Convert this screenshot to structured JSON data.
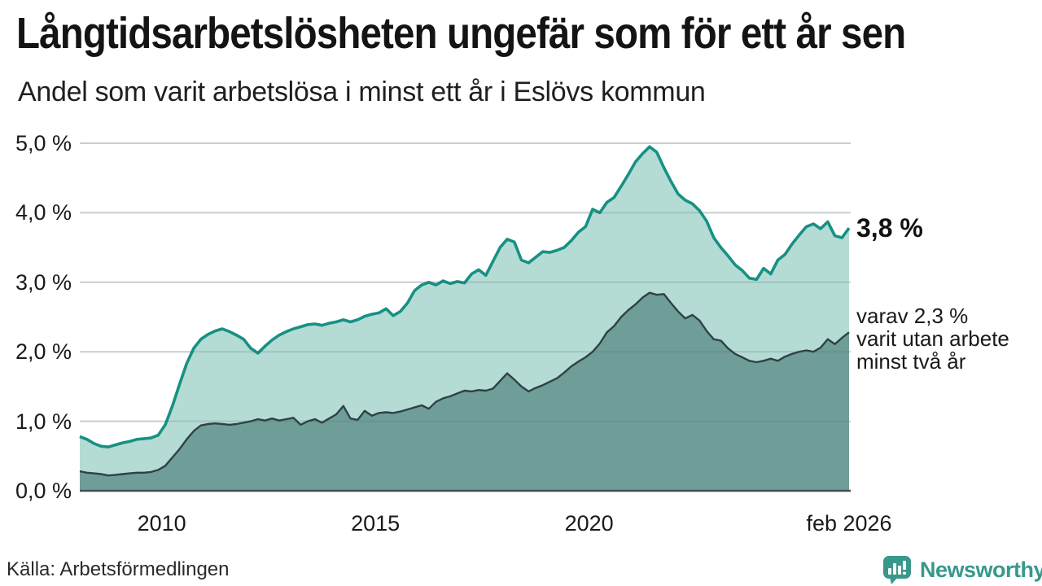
{
  "title": "Långtidsarbetslösheten ungefär som för ett år sen",
  "subtitle": "Andel som varit arbetslösa i minst ett år i Eslövs kommun",
  "source": "Källa: Arbetsförmedlingen",
  "branding": {
    "name": "Newsworthy",
    "color": "#38988c"
  },
  "annotations": {
    "total_label": "3,8 %",
    "subset_label_lines": [
      "varav 2,3 %",
      "varit utan arbete",
      "minst två år"
    ]
  },
  "chart_data": {
    "type": "area",
    "title": "Andel som varit arbetslösa i minst ett år i Eslövs kommun",
    "xlabel": "",
    "ylabel": "",
    "ylim": [
      0,
      5
    ],
    "grid": true,
    "x_start_year": 2008.083,
    "x_end_year": 2026.083,
    "x_ticks": [
      {
        "label": "2010",
        "year": 2010.0
      },
      {
        "label": "2015",
        "year": 2015.0
      },
      {
        "label": "2020",
        "year": 2020.0
      },
      {
        "label": "feb 2026",
        "year": 2026.083
      }
    ],
    "y_ticks": [
      {
        "label": "0,0 %",
        "value": 0
      },
      {
        "label": "1,0 %",
        "value": 1
      },
      {
        "label": "2,0 %",
        "value": 2
      },
      {
        "label": "3,0 %",
        "value": 3
      },
      {
        "label": "4,0 %",
        "value": 4
      },
      {
        "label": "5,0 %",
        "value": 5
      }
    ],
    "series": [
      {
        "name": "arbetslösa minst ett år",
        "latest_label": "3,8 %",
        "line_color": "#169184",
        "fill_color": "#a8d5ce",
        "values": [
          0.78,
          0.74,
          0.68,
          0.64,
          0.63,
          0.66,
          0.69,
          0.71,
          0.74,
          0.75,
          0.76,
          0.8,
          0.95,
          1.22,
          1.53,
          1.83,
          2.05,
          2.18,
          2.25,
          2.3,
          2.33,
          2.29,
          2.24,
          2.18,
          2.05,
          1.98,
          2.08,
          2.17,
          2.24,
          2.29,
          2.33,
          2.36,
          2.39,
          2.4,
          2.38,
          2.41,
          2.43,
          2.46,
          2.43,
          2.46,
          2.51,
          2.54,
          2.56,
          2.62,
          2.52,
          2.58,
          2.7,
          2.88,
          2.96,
          3.0,
          2.96,
          3.02,
          2.98,
          3.01,
          2.99,
          3.12,
          3.18,
          3.1,
          3.3,
          3.5,
          3.62,
          3.58,
          3.32,
          3.28,
          3.36,
          3.44,
          3.43,
          3.46,
          3.5,
          3.6,
          3.72,
          3.8,
          4.05,
          4.0,
          4.15,
          4.22,
          4.38,
          4.55,
          4.73,
          4.85,
          4.95,
          4.87,
          4.65,
          4.45,
          4.27,
          4.18,
          4.13,
          4.03,
          3.88,
          3.64,
          3.5,
          3.38,
          3.25,
          3.17,
          3.06,
          3.04,
          3.2,
          3.12,
          3.32,
          3.4,
          3.55,
          3.68,
          3.8,
          3.84,
          3.77,
          3.87,
          3.67,
          3.64,
          3.78
        ]
      },
      {
        "name": "varav utan arbete minst två år",
        "latest_label": "2,3 %",
        "line_color": "#2f4147",
        "fill_color": "#6f9e98",
        "values": [
          0.28,
          0.26,
          0.25,
          0.24,
          0.22,
          0.23,
          0.24,
          0.25,
          0.26,
          0.26,
          0.27,
          0.3,
          0.36,
          0.48,
          0.6,
          0.74,
          0.86,
          0.94,
          0.96,
          0.97,
          0.96,
          0.95,
          0.96,
          0.98,
          1.0,
          1.03,
          1.01,
          1.04,
          1.01,
          1.03,
          1.05,
          0.95,
          1.0,
          1.03,
          0.98,
          1.04,
          1.1,
          1.22,
          1.04,
          1.02,
          1.15,
          1.08,
          1.12,
          1.13,
          1.12,
          1.14,
          1.17,
          1.2,
          1.23,
          1.18,
          1.28,
          1.33,
          1.36,
          1.4,
          1.44,
          1.43,
          1.45,
          1.44,
          1.47,
          1.58,
          1.69,
          1.6,
          1.5,
          1.43,
          1.48,
          1.52,
          1.57,
          1.62,
          1.7,
          1.79,
          1.86,
          1.92,
          2.0,
          2.12,
          2.28,
          2.37,
          2.5,
          2.6,
          2.68,
          2.78,
          2.85,
          2.82,
          2.83,
          2.7,
          2.58,
          2.48,
          2.53,
          2.45,
          2.3,
          2.18,
          2.16,
          2.05,
          1.97,
          1.92,
          1.87,
          1.85,
          1.87,
          1.9,
          1.87,
          1.93,
          1.97,
          2.0,
          2.02,
          2.0,
          2.06,
          2.18,
          2.11,
          2.2,
          2.28
        ]
      }
    ]
  }
}
